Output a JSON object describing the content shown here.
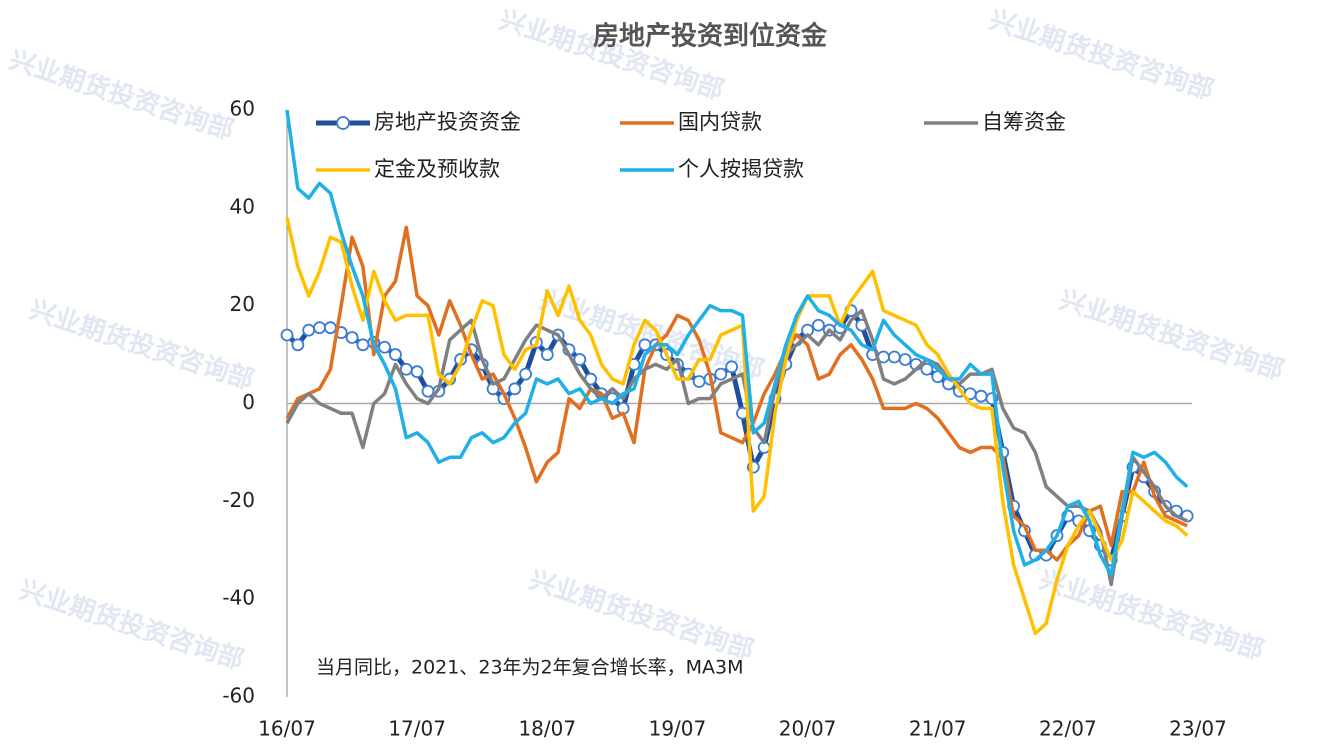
{
  "chart_data": {
    "type": "line",
    "title": "房地产投资到位资金",
    "annotation": "当月同比，2021、23年为2年复合增长率，MA3M",
    "watermark": "兴业期货投资咨询部",
    "xlim": [
      0,
      84
    ],
    "xticks": [
      {
        "value": 0,
        "label": "16/07"
      },
      {
        "value": 12,
        "label": "17/07"
      },
      {
        "value": 24,
        "label": "18/07"
      },
      {
        "value": 36,
        "label": "19/07"
      },
      {
        "value": 48,
        "label": "20/07"
      },
      {
        "value": 60,
        "label": "21/07"
      },
      {
        "value": 72,
        "label": "22/07"
      },
      {
        "value": 84,
        "label": "23/07"
      }
    ],
    "ylim": [
      -60,
      60
    ],
    "yticks": [
      -60,
      -40,
      -20,
      0,
      20,
      40,
      60
    ],
    "series": [
      {
        "name": "房地产投资资金",
        "color": "#1f4e9c",
        "marker": "circle",
        "values": [
          14,
          12,
          15,
          15.5,
          15.5,
          14.5,
          13.5,
          12,
          12.5,
          11.5,
          10,
          7,
          6.5,
          2.5,
          2.5,
          5,
          9,
          11,
          8,
          3,
          1,
          3,
          6,
          12.5,
          10,
          14,
          11,
          9,
          5,
          2,
          1,
          -1,
          8,
          12,
          12,
          10,
          8,
          6,
          4.5,
          5,
          6,
          7.5,
          -2,
          -13,
          -9,
          1,
          8,
          13,
          15,
          16,
          15,
          15.5,
          19,
          16,
          10,
          9.5,
          9.5,
          9,
          8,
          7,
          5.5,
          4,
          2.5,
          2,
          1.5,
          1,
          -10,
          -21,
          -26,
          -31,
          -31,
          -27,
          -23,
          -24,
          -26,
          -29,
          -32,
          -23,
          -13,
          -15,
          -18,
          -21,
          -22,
          -23
        ]
      },
      {
        "name": "国内贷款",
        "color": "#e07020",
        "values": [
          -3,
          1,
          2,
          3,
          7,
          20,
          34,
          28,
          10,
          22,
          25,
          36,
          22,
          20,
          14,
          21,
          16,
          10,
          5,
          6,
          2,
          -3,
          -9,
          -16,
          -12,
          -10,
          1,
          -1,
          3,
          2,
          -3,
          -2,
          -8,
          7,
          12,
          14,
          18,
          17,
          13,
          6,
          -6,
          -7,
          -8,
          -4,
          2,
          6,
          11,
          14,
          12,
          5,
          6,
          10,
          12,
          9,
          5,
          -1,
          -1,
          -1,
          0,
          -1,
          -3,
          -6,
          -9,
          -10,
          -9,
          -9,
          -11,
          -23,
          -25,
          -30,
          -30,
          -32,
          -29,
          -27,
          -22,
          -21,
          -29,
          -18,
          -18,
          -12,
          -19,
          -23,
          -24,
          -25
        ]
      },
      {
        "name": "自筹资金",
        "color": "#808080",
        "values": [
          -4,
          0,
          2,
          0,
          -1,
          -2,
          -2,
          -9,
          0,
          2,
          8,
          4,
          1,
          0,
          3,
          13,
          15,
          17,
          9,
          4,
          5,
          9,
          13,
          16,
          15,
          14,
          10,
          6,
          3,
          1,
          3,
          1,
          5,
          7,
          8,
          7,
          9,
          0,
          1,
          1,
          4,
          5,
          6,
          -5,
          -8,
          3,
          10,
          12,
          14,
          12,
          15,
          13,
          17,
          19,
          13,
          5,
          4,
          5,
          7,
          9,
          8,
          5,
          4,
          6,
          6,
          7,
          -1,
          -5,
          -6,
          -10,
          -17,
          -19,
          -21,
          -21,
          -22,
          -26,
          -37,
          -23,
          -11,
          -14,
          -17,
          -21,
          -23,
          -24
        ]
      },
      {
        "name": "定金及预收款",
        "color": "#ffc000",
        "values": [
          38,
          28,
          22,
          27,
          34,
          33,
          24,
          17,
          27,
          21,
          17,
          18,
          18,
          18,
          6,
          4,
          8,
          15,
          21,
          20,
          10,
          7,
          11,
          12,
          23,
          18,
          24,
          17,
          14,
          8,
          5,
          4,
          12,
          17,
          15,
          10,
          5,
          5,
          9,
          9,
          14,
          15,
          16,
          -22,
          -19,
          -2,
          9,
          17,
          22,
          22,
          22,
          16,
          21,
          24,
          27,
          19,
          18,
          17,
          16,
          12,
          10,
          6,
          3,
          0,
          -1,
          -1,
          -20,
          -33,
          -40,
          -47,
          -45,
          -36,
          -29,
          -25,
          -22,
          -27,
          -32,
          -28,
          -18,
          -20,
          -22,
          -24,
          -25,
          -27
        ]
      },
      {
        "name": "个人按揭贷款",
        "color": "#1fb0e8",
        "values": [
          60,
          44,
          42,
          45,
          43,
          35,
          28,
          22,
          12,
          8,
          3,
          -7,
          -6,
          -8,
          -12,
          -11,
          -11,
          -7,
          -6,
          -8,
          -7,
          -4,
          -2,
          5,
          4,
          5,
          2,
          3,
          0,
          1,
          0,
          2,
          3,
          10,
          12,
          12,
          10,
          14,
          17,
          20,
          19,
          19,
          18,
          -6,
          -4,
          4,
          12,
          18,
          22,
          19,
          18,
          16,
          15,
          12,
          11,
          17,
          14,
          12,
          10,
          9,
          7,
          5,
          5,
          8,
          6,
          6,
          -13,
          -26,
          -33,
          -32,
          -30,
          -27,
          -21,
          -20,
          -24,
          -31,
          -35,
          -22,
          -10,
          -11,
          -10,
          -12,
          -15,
          -17
        ]
      }
    ]
  }
}
